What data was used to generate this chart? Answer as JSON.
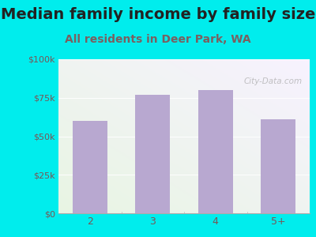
{
  "title": "Median family income by family size",
  "subtitle": "All residents in Deer Park, WA",
  "categories": [
    "2",
    "3",
    "4",
    "5+"
  ],
  "values": [
    60000,
    77000,
    80000,
    61000
  ],
  "bar_color": "#b8a8d0",
  "ylim": [
    0,
    100000
  ],
  "yticks": [
    0,
    25000,
    50000,
    75000,
    100000
  ],
  "ytick_labels": [
    "$0",
    "$25k",
    "$50k",
    "$75k",
    "$100k"
  ],
  "title_fontsize": 14,
  "subtitle_fontsize": 10,
  "title_color": "#222222",
  "subtitle_color": "#7a6060",
  "tick_color": "#7a5555",
  "background_outer": "#00EDED",
  "watermark": "City-Data.com"
}
